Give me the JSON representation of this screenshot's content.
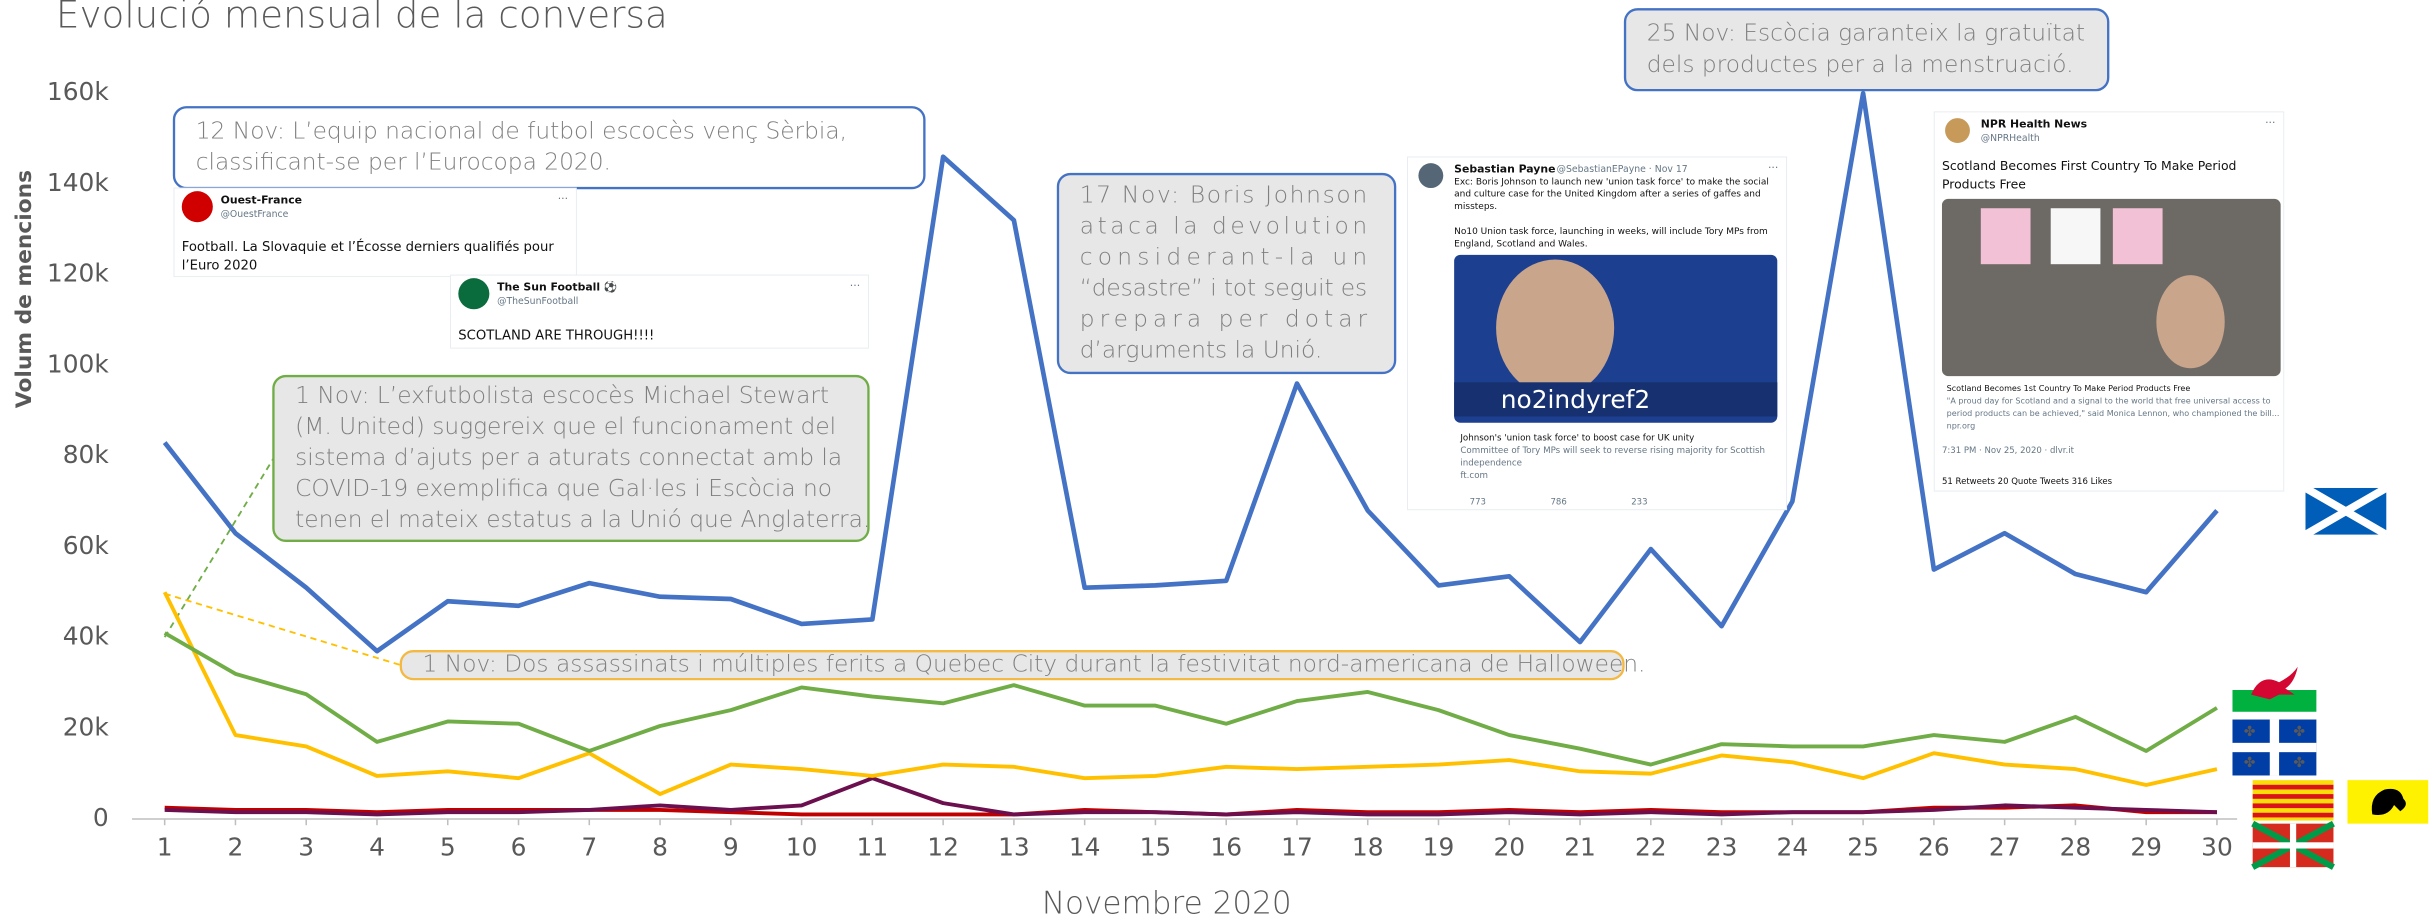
{
  "chart_data": {
    "type": "line",
    "title": "Evolució mensual de la conversa",
    "xlabel": "Novembre 2020",
    "ylabel": "Volum de mencions",
    "x": [
      1,
      2,
      3,
      4,
      5,
      6,
      7,
      8,
      9,
      10,
      11,
      12,
      13,
      14,
      15,
      16,
      17,
      18,
      19,
      20,
      21,
      22,
      23,
      24,
      25,
      26,
      27,
      28,
      29,
      30
    ],
    "xlim": [
      1,
      30
    ],
    "ylim": [
      0,
      160000
    ],
    "yticks": [
      0,
      {
        "value": 20000,
        "label": "20k"
      },
      {
        "value": 40000,
        "label": "40k"
      },
      {
        "value": 60000,
        "label": "60k"
      },
      {
        "value": 80000,
        "label": "80k"
      },
      {
        "value": 100000,
        "label": "100k"
      },
      {
        "value": 120000,
        "label": "120k"
      },
      {
        "value": 140000,
        "label": "140k"
      },
      {
        "value": 160000,
        "label": "160k"
      }
    ],
    "grid": false,
    "series": [
      {
        "color": "#4472c4",
        "values": [
          83000,
          63000,
          51000,
          37000,
          48000,
          47000,
          52000,
          49000,
          48500,
          43000,
          44000,
          146000,
          132000,
          51000,
          51500,
          52500,
          96000,
          68000,
          51500,
          53500,
          39000,
          59500,
          42500,
          70000,
          160000,
          55000,
          63000,
          54000,
          50000,
          68000
        ]
      },
      {
        "color": "#70ad47",
        "values": [
          41000,
          32000,
          27500,
          17000,
          21500,
          21000,
          15000,
          20500,
          24000,
          29000,
          27000,
          25500,
          29500,
          25000,
          25000,
          21000,
          26000,
          28000,
          24000,
          18500,
          15500,
          12000,
          16500,
          16000,
          16000,
          18500,
          17000,
          22500,
          15000,
          24500
        ]
      },
      {
        "color": "#ffc000",
        "values": [
          50000,
          18500,
          16000,
          9500,
          10500,
          9000,
          14500,
          5500,
          12000,
          11000,
          9500,
          12000,
          11500,
          9000,
          9500,
          11500,
          11000,
          11500,
          12000,
          13000,
          10500,
          10000,
          14000,
          12500,
          9000,
          14500,
          12000,
          11000,
          7500,
          11000
        ]
      },
      {
        "color": "#6b0f4f",
        "values": [
          2000,
          1500,
          1500,
          1000,
          1500,
          1500,
          2000,
          3000,
          2000,
          3000,
          9000,
          3500,
          1000,
          1500,
          1500,
          1000,
          1500,
          1000,
          1000,
          1500,
          1000,
          1500,
          1000,
          1500,
          1500,
          2000,
          3000,
          2500,
          2000,
          1500
        ]
      },
      {
        "color": "#c00000",
        "values": [
          2500,
          2000,
          2000,
          1500,
          2000,
          2000,
          2000,
          2000,
          1500,
          1000,
          1000,
          1000,
          1000,
          2000,
          1500,
          1000,
          2000,
          1500,
          1500,
          2000,
          1500,
          2000,
          1500,
          1500,
          1500,
          2500,
          2500,
          3000,
          1500,
          1500
        ]
      }
    ],
    "annotations": [
      {
        "lines": [
          "12 Nov: L’equip nacional de futbol escocès venç Sèrbia,",
          "classificant-se per l’Eurocopa 2020."
        ]
      },
      {
        "lines": [
          "17 Nov: Boris Johnson",
          "ataca la devolution",
          "considerant-la un",
          "“desastre” i tot seguit es",
          "prepara per dotar",
          "d’arguments la Unió."
        ]
      },
      {
        "lines": [
          "25 Nov: Escòcia garanteix la gratuïtat",
          "dels productes per a la menstruació."
        ]
      },
      {
        "lines": [
          "1 Nov: L’exfutbolista escocès Michael Stewart",
          "(M. United) suggereix que el funcionament del",
          "sistema d’ajuts per a aturats connectat amb la",
          "COVID-19 exemplifica que Gal·les i Escòcia no",
          "tenen el mateix estatus a la Unió que Anglaterra."
        ]
      },
      {
        "lines": [
          "1 Nov: Dos assassinats i múltiples ferits a Quebec City durant la festivitat nord-americana de Halloween."
        ]
      }
    ],
    "tweets": [
      {
        "author": "Ouest-France",
        "handle": "@OuestFrance",
        "lines": [
          "Football. La Slovaquie et l’Écosse derniers qualifiés pour",
          "l’Euro 2020"
        ]
      },
      {
        "author": "The Sun Football ⚽",
        "handle": "@TheSunFootball",
        "lines": [
          "SCOTLAND ARE THROUGH!!!!"
        ]
      },
      {
        "author": "Sebastian Payne",
        "handle": "@SebastianEPayne · Nov 17",
        "lines": [
          "Exc: Boris Johnson to launch new 'union task force' to make the social",
          "and culture case for the United Kingdom after a series of gaffes and",
          "missteps.",
          "No10 Union task force, launching in weeks, will include Tory MPs from",
          "England, Scotland and Wales."
        ],
        "image_text": "no2indyref2",
        "card": [
          "Johnson's 'union task force' to boost case for UK unity",
          "Committee of Tory MPs will seek to reverse rising majority for Scottish",
          "independence",
          "ft.com"
        ],
        "stats": [
          "773",
          "786",
          "233"
        ]
      },
      {
        "author": "NPR Health News",
        "handle": "@NPRHealth",
        "lines": [
          "Scotland Becomes First Country To Make Period",
          "Products Free"
        ],
        "card": [
          "Scotland Becomes 1st Country To Make Period Products Free",
          "\"A proud day for Scotland and a signal to the world that free universal access to",
          "period products can be achieved,\" said Monica Lennon, who championed the bill...",
          "npr.org"
        ],
        "stats": [
          "7:31 PM · Nov 25, 2020 · dlvr.it",
          "51 Retweets   20 Quote Tweets   316 Likes"
        ]
      }
    ]
  }
}
